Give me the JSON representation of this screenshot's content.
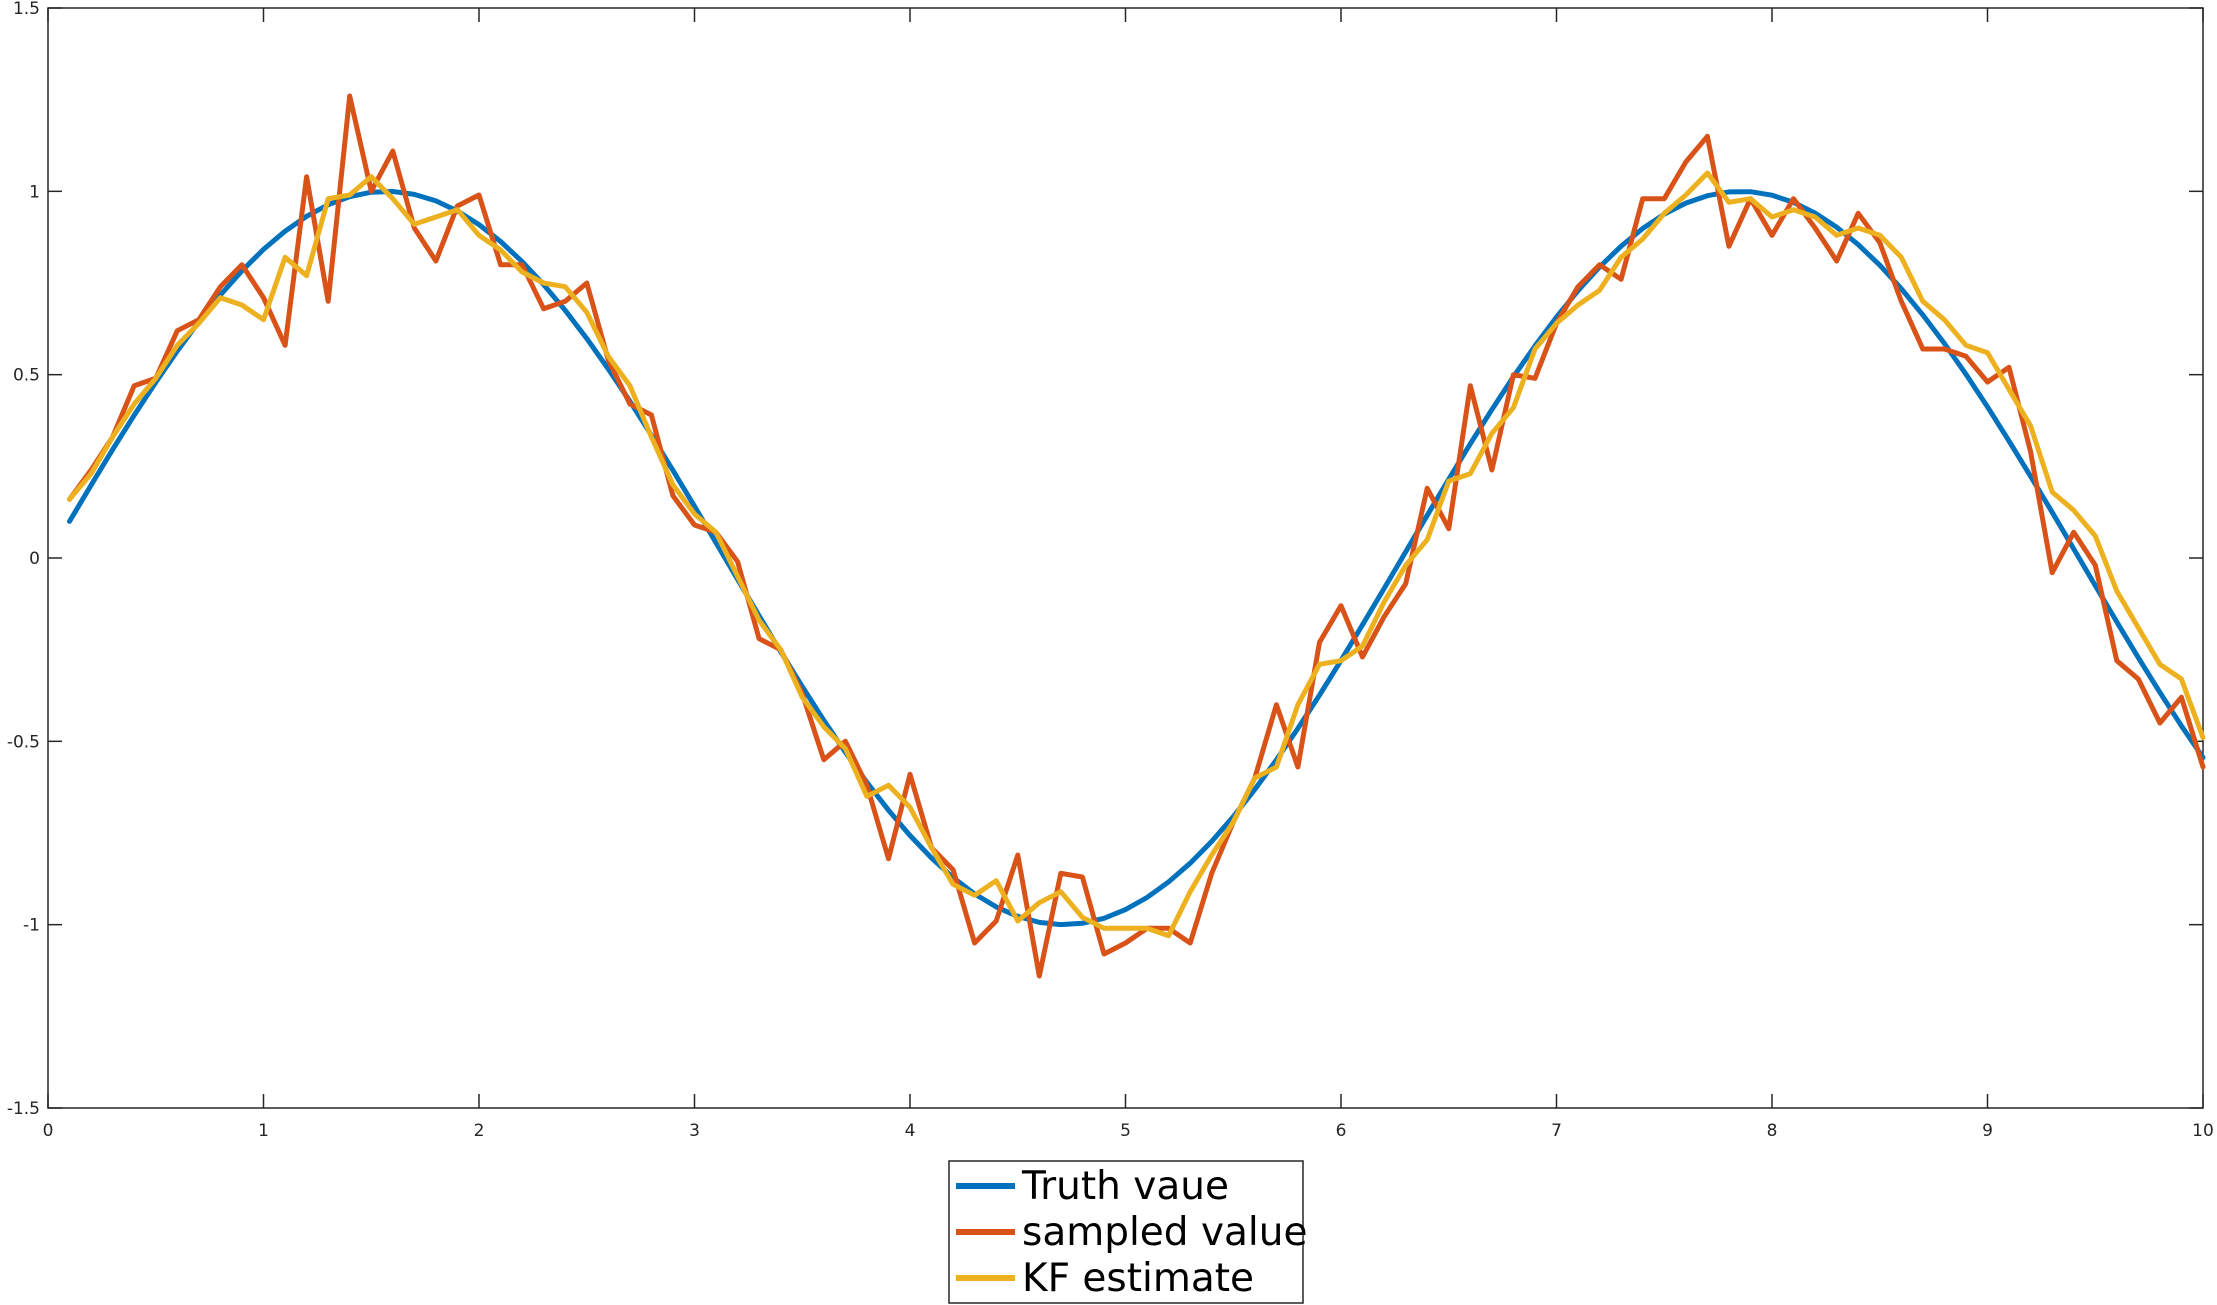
{
  "chart_data": {
    "type": "line",
    "title": "",
    "xlabel": "",
    "ylabel": "",
    "xlim": [
      0,
      10
    ],
    "ylim": [
      -1.5,
      1.5
    ],
    "grid": false,
    "legend_position": "bottom-center-outside",
    "x_ticks": [
      0,
      1,
      2,
      3,
      4,
      5,
      6,
      7,
      8,
      9,
      10
    ],
    "x_tick_labels": [
      "0",
      "1",
      "2",
      "3",
      "4",
      "5",
      "6",
      "7",
      "8",
      "9",
      "10"
    ],
    "y_ticks": [
      -1.5,
      -1,
      -0.5,
      0,
      0.5,
      1,
      1.5
    ],
    "y_tick_labels": [
      "-1.5",
      "-1",
      "-0.5",
      "0",
      "0.5",
      "1",
      "1.5"
    ],
    "x": [
      0.1,
      0.2,
      0.3,
      0.4,
      0.5,
      0.6,
      0.7,
      0.8,
      0.9,
      1.0,
      1.1,
      1.2,
      1.3,
      1.4,
      1.5,
      1.6,
      1.7,
      1.8,
      1.9,
      2.0,
      2.1,
      2.2,
      2.3,
      2.4,
      2.5,
      2.6,
      2.7,
      2.8,
      2.9,
      3.0,
      3.1,
      3.2,
      3.3,
      3.4,
      3.5,
      3.6,
      3.7,
      3.8,
      3.9,
      4.0,
      4.1,
      4.2,
      4.3,
      4.4,
      4.5,
      4.6,
      4.7,
      4.8,
      4.9,
      5.0,
      5.1,
      5.2,
      5.3,
      5.4,
      5.5,
      5.6,
      5.7,
      5.8,
      5.9,
      6.0,
      6.1,
      6.2,
      6.3,
      6.4,
      6.5,
      6.6,
      6.7,
      6.8,
      6.9,
      7.0,
      7.1,
      7.2,
      7.3,
      7.4,
      7.5,
      7.6,
      7.7,
      7.8,
      7.9,
      8.0,
      8.1,
      8.2,
      8.3,
      8.4,
      8.5,
      8.6,
      8.7,
      8.8,
      8.9,
      9.0,
      9.1,
      9.2,
      9.3,
      9.4,
      9.5,
      9.6,
      9.7,
      9.8,
      9.9,
      10.0
    ],
    "series": [
      {
        "name": "Truth vaue",
        "color": "#0072bd",
        "values": [
          0.0998,
          0.1987,
          0.2955,
          0.3894,
          0.4794,
          0.5646,
          0.6442,
          0.7174,
          0.7833,
          0.8415,
          0.8912,
          0.932,
          0.9636,
          0.9854,
          0.9975,
          0.9996,
          0.9917,
          0.9738,
          0.9463,
          0.9093,
          0.8632,
          0.8085,
          0.7457,
          0.6755,
          0.5985,
          0.5155,
          0.4274,
          0.335,
          0.2392,
          0.1411,
          0.0416,
          -0.0584,
          -0.1577,
          -0.2555,
          -0.3508,
          -0.4425,
          -0.5298,
          -0.6119,
          -0.6878,
          -0.7568,
          -0.8183,
          -0.8716,
          -0.9162,
          -0.9516,
          -0.9775,
          -0.9937,
          -0.9999,
          -0.9962,
          -0.9825,
          -0.9589,
          -0.9258,
          -0.8835,
          -0.8323,
          -0.7728,
          -0.7055,
          -0.6313,
          -0.5507,
          -0.4646,
          -0.3739,
          -0.2794,
          -0.1822,
          -0.0831,
          0.0168,
          0.1165,
          0.2151,
          0.3115,
          0.4048,
          0.4941,
          0.5784,
          0.657,
          0.729,
          0.7937,
          0.8504,
          0.8987,
          0.938,
          0.9679,
          0.9882,
          0.9985,
          0.9989,
          0.9894,
          0.9699,
          0.9407,
          0.9022,
          0.8546,
          0.7985,
          0.7344,
          0.663,
          0.5849,
          0.501,
          0.4121,
          0.3191,
          0.2229,
          0.1245,
          0.0248,
          -0.0752,
          -0.1743,
          -0.2718,
          -0.3665,
          -0.4575,
          -0.544
        ]
      },
      {
        "name": "sampled value",
        "color": "#d95319",
        "values": [
          0.16,
          0.24,
          0.33,
          0.47,
          0.49,
          0.62,
          0.65,
          0.74,
          0.8,
          0.71,
          0.58,
          1.04,
          0.7,
          1.26,
          1.0,
          1.11,
          0.9,
          0.81,
          0.96,
          0.99,
          0.8,
          0.8,
          0.68,
          0.7,
          0.75,
          0.54,
          0.42,
          0.39,
          0.17,
          0.09,
          0.07,
          -0.01,
          -0.22,
          -0.25,
          -0.37,
          -0.55,
          -0.5,
          -0.62,
          -0.82,
          -0.59,
          -0.79,
          -0.85,
          -1.05,
          -0.99,
          -0.81,
          -1.14,
          -0.86,
          -0.87,
          -1.08,
          -1.05,
          -1.01,
          -1.01,
          -1.05,
          -0.86,
          -0.72,
          -0.6,
          -0.4,
          -0.57,
          -0.23,
          -0.13,
          -0.27,
          -0.16,
          -0.07,
          0.19,
          0.08,
          0.47,
          0.24,
          0.5,
          0.49,
          0.64,
          0.74,
          0.8,
          0.76,
          0.98,
          0.98,
          1.08,
          1.15,
          0.85,
          0.98,
          0.88,
          0.98,
          0.9,
          0.81,
          0.94,
          0.86,
          0.7,
          0.57,
          0.57,
          0.55,
          0.48,
          0.52,
          0.29,
          -0.04,
          0.07,
          -0.02,
          -0.28,
          -0.33,
          -0.45,
          -0.38,
          -0.57
        ]
      },
      {
        "name": "KF estimate",
        "color": "#edb120",
        "values": [
          0.16,
          0.23,
          0.33,
          0.42,
          0.49,
          0.58,
          0.64,
          0.71,
          0.69,
          0.65,
          0.82,
          0.77,
          0.98,
          0.99,
          1.04,
          0.98,
          0.91,
          0.93,
          0.95,
          0.88,
          0.84,
          0.78,
          0.75,
          0.74,
          0.67,
          0.55,
          0.47,
          0.33,
          0.2,
          0.12,
          0.07,
          -0.05,
          -0.17,
          -0.25,
          -0.38,
          -0.46,
          -0.52,
          -0.65,
          -0.62,
          -0.68,
          -0.79,
          -0.89,
          -0.92,
          -0.88,
          -0.99,
          -0.94,
          -0.91,
          -0.98,
          -1.01,
          -1.01,
          -1.01,
          -1.03,
          -0.91,
          -0.81,
          -0.72,
          -0.6,
          -0.57,
          -0.4,
          -0.29,
          -0.28,
          -0.24,
          -0.12,
          -0.02,
          0.05,
          0.21,
          0.23,
          0.34,
          0.41,
          0.57,
          0.64,
          0.69,
          0.73,
          0.82,
          0.87,
          0.94,
          0.99,
          1.05,
          0.97,
          0.98,
          0.93,
          0.95,
          0.93,
          0.88,
          0.9,
          0.88,
          0.82,
          0.7,
          0.65,
          0.58,
          0.56,
          0.46,
          0.36,
          0.18,
          0.13,
          0.06,
          -0.09,
          -0.19,
          -0.29,
          -0.33,
          -0.49
        ]
      }
    ],
    "legend": [
      "Truth vaue",
      "sampled value",
      "KF estimate"
    ],
    "axis_color": "#262626",
    "background": "#ffffff"
  }
}
